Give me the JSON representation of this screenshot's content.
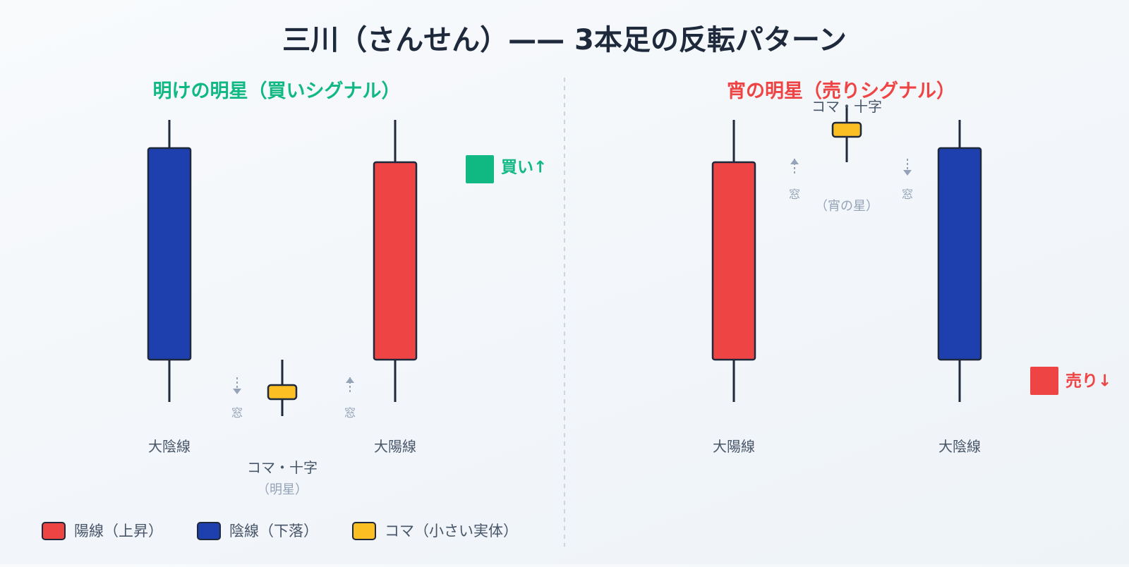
{
  "title": "三川（さんせん）—— 3本足の反転パターン",
  "colors": {
    "bullish": "#ef4444",
    "bearish": "#1e40af",
    "doji": "#fbbf24",
    "outline": "#1e293b",
    "buy": "#10b981",
    "sell": "#ef4444",
    "muted": "#94a3b8",
    "divider": "#cbd5e1"
  },
  "panels": [
    {
      "heading": "明けの明星（買いシグナル）",
      "heading_color": "#10b981",
      "candles": [
        {
          "kind": "bearish",
          "label": "大陰線",
          "open": 100,
          "close": 25,
          "high": 110,
          "low": 10
        },
        {
          "kind": "doji",
          "label": "コマ・十字",
          "sublabel": "（明星）",
          "open": 16,
          "close": 11,
          "high": 25,
          "low": 5
        },
        {
          "kind": "bullish",
          "label": "大陽線",
          "open": 25,
          "close": 95,
          "high": 110,
          "low": 10
        }
      ],
      "gaps": [
        {
          "label": "窓",
          "direction": "down"
        },
        {
          "label": "窓",
          "direction": "up"
        }
      ],
      "signal": {
        "label": "買い↑",
        "color": "#10b981"
      }
    },
    {
      "heading": "宵の明星（売りシグナル）",
      "heading_color": "#ef4444",
      "candles": [
        {
          "kind": "bullish",
          "label": "大陽線",
          "open": 25,
          "close": 95,
          "high": 110,
          "low": 10
        },
        {
          "kind": "doji",
          "label": "コマ・十字",
          "sublabel": "（宵の星）",
          "open": 109,
          "close": 104,
          "high": 115,
          "low": 95
        },
        {
          "kind": "bearish",
          "label": "大陰線",
          "open": 100,
          "close": 25,
          "high": 110,
          "low": 10
        }
      ],
      "gaps": [
        {
          "label": "窓",
          "direction": "up"
        },
        {
          "label": "窓",
          "direction": "down"
        }
      ],
      "signal": {
        "label": "売り↓",
        "color": "#ef4444"
      }
    }
  ],
  "legend": [
    {
      "label": "陽線（上昇）",
      "kind": "bullish"
    },
    {
      "label": "陰線（下落）",
      "kind": "bearish"
    },
    {
      "label": "コマ（小さい実体）",
      "kind": "doji"
    }
  ]
}
